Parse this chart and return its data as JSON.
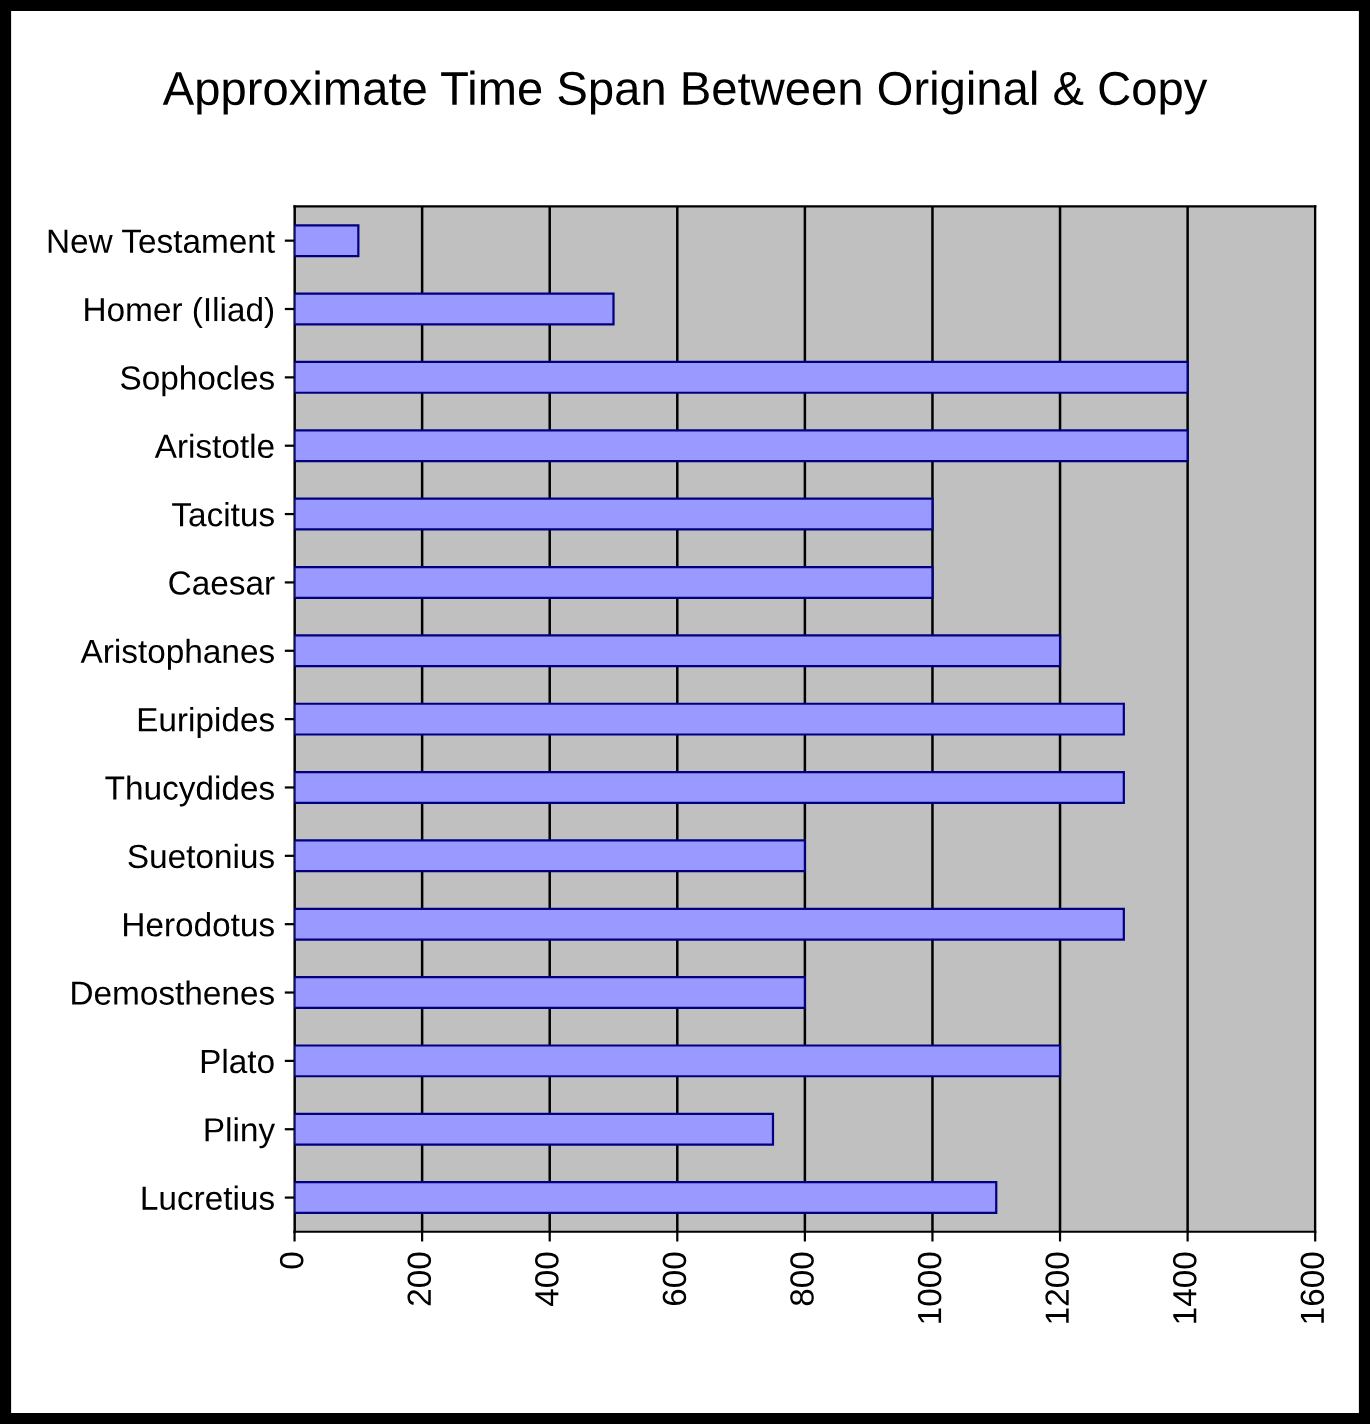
{
  "chart_data": {
    "type": "bar",
    "orientation": "horizontal",
    "title": "Approximate Time Span Between Original & Copy",
    "categories": [
      "New Testament",
      "Homer (Iliad)",
      "Sophocles",
      "Aristotle",
      "Tacitus",
      "Caesar",
      "Aristophanes",
      "Euripides",
      "Thucydides",
      "Suetonius",
      "Herodotus",
      "Demosthenes",
      "Plato",
      "Pliny",
      "Lucretius"
    ],
    "series": [
      {
        "color": "#9999ff",
        "values": [
          100,
          500,
          1400,
          1400,
          1000,
          1000,
          1200,
          1300,
          1300,
          800,
          1300,
          800,
          1200,
          750,
          1100
        ]
      }
    ],
    "xlim": [
      0,
      1600
    ],
    "xticks": [
      0,
      200,
      400,
      600,
      800,
      1000,
      1200,
      1400,
      1600
    ],
    "grid": "x",
    "legend": false
  }
}
